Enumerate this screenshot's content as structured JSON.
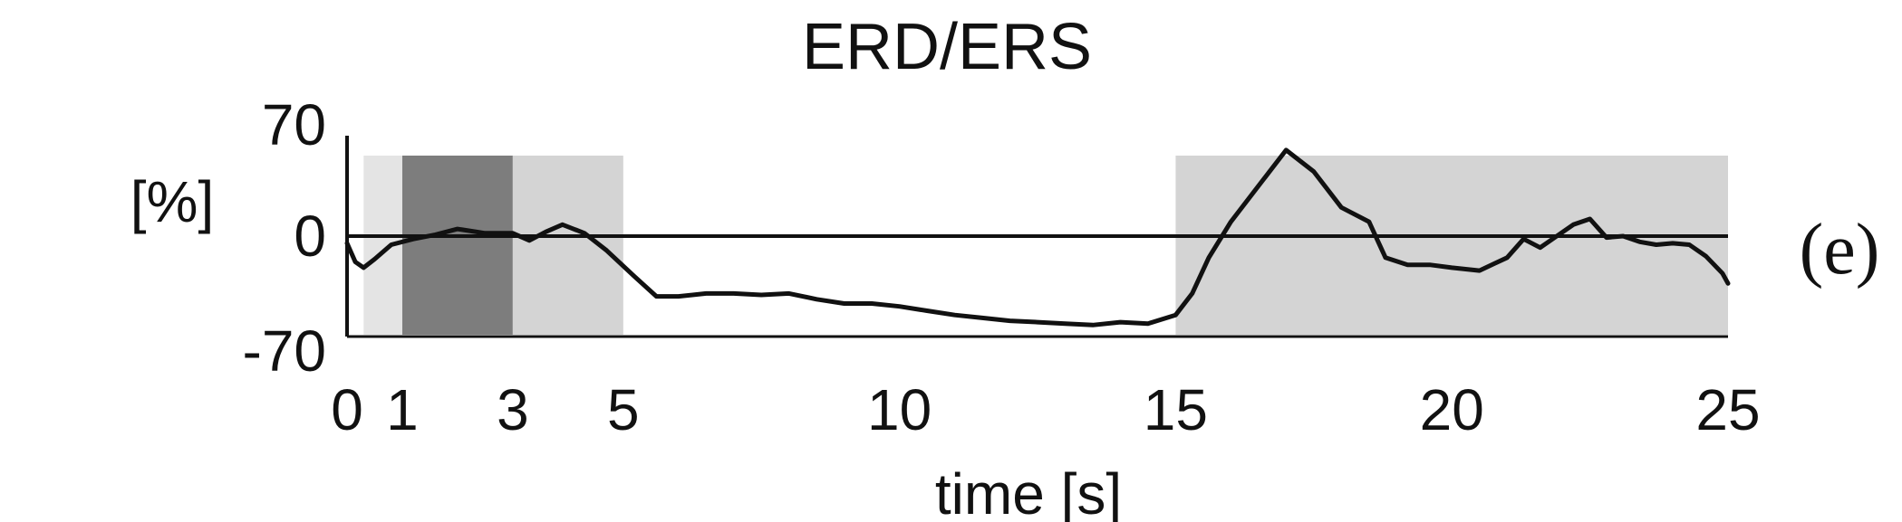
{
  "chart_data": {
    "type": "line",
    "title": "ERD/ERS",
    "xlabel": "time [s]",
    "ylabel": "[%]",
    "panel_label": "(e)",
    "xlim": [
      0,
      25
    ],
    "ylim": [
      -70,
      70
    ],
    "x_ticks": [
      0,
      1,
      3,
      5,
      10,
      15,
      20,
      25
    ],
    "y_ticks": [
      70,
      0,
      -70
    ],
    "colors": {
      "line": "#111111",
      "band_light": "#d4d4d4",
      "band_lighter": "#e4e4e4",
      "band_dark": "#7d7d7d"
    },
    "shaded_regions": [
      {
        "x0": 0.3,
        "x1": 1.0,
        "shade": "lighter"
      },
      {
        "x0": 1.0,
        "x1": 3.0,
        "shade": "dark"
      },
      {
        "x0": 3.0,
        "x1": 5.0,
        "shade": "light"
      },
      {
        "x0": 15.0,
        "x1": 25.0,
        "shade": "light"
      }
    ],
    "series": [
      {
        "x": [
          0,
          0.15,
          0.3,
          0.5,
          0.8,
          1.2,
          1.6,
          2.0,
          2.5,
          3.0,
          3.3,
          3.6,
          3.9,
          4.3,
          4.7,
          5.2,
          5.6,
          6.0,
          6.5,
          7.0,
          7.5,
          8.0,
          8.5,
          9.0,
          9.5,
          10.0,
          10.5,
          11.0,
          11.5,
          12.0,
          12.5,
          13.0,
          13.5,
          14.0,
          14.5,
          15.0,
          15.3,
          15.6,
          16.0,
          16.5,
          17.0,
          17.5,
          18.0,
          18.5,
          18.8,
          19.2,
          19.6,
          20.0,
          20.5,
          21.0,
          21.3,
          21.6,
          21.9,
          22.2,
          22.5,
          22.8,
          23.1,
          23.4,
          23.7,
          24.0,
          24.3,
          24.6,
          24.9,
          25.0
        ],
        "y": [
          -5,
          -18,
          -22,
          -16,
          -6,
          -2,
          1,
          5,
          2,
          2,
          -3,
          3,
          8,
          2,
          -10,
          -28,
          -42,
          -42,
          -40,
          -40,
          -41,
          -40,
          -44,
          -47,
          -47,
          -49,
          -52,
          -55,
          -57,
          -59,
          -60,
          -61,
          -62,
          -60,
          -61,
          -55,
          -40,
          -15,
          10,
          35,
          60,
          45,
          20,
          10,
          -15,
          -20,
          -20,
          -22,
          -24,
          -15,
          -2,
          -8,
          0,
          8,
          12,
          -1,
          0,
          -4,
          -6,
          -5,
          -6,
          -14,
          -26,
          -33
        ]
      }
    ]
  }
}
